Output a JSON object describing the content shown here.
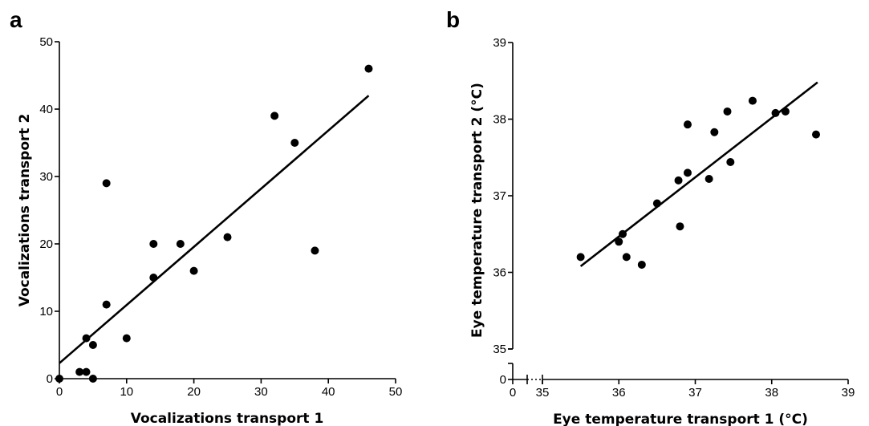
{
  "chart_data": [
    {
      "type": "scatter",
      "panel_label": "a",
      "xlabel": "Vocalizations transport 1",
      "ylabel": "Vocalizations transport 2",
      "xlim": [
        0,
        50
      ],
      "ylim": [
        0,
        50
      ],
      "x_ticks": [
        0,
        10,
        20,
        30,
        40,
        50
      ],
      "y_ticks": [
        0,
        10,
        20,
        30,
        40,
        50
      ],
      "grid": false,
      "points": [
        {
          "x": 0,
          "y": 0
        },
        {
          "x": 3,
          "y": 1
        },
        {
          "x": 4,
          "y": 1
        },
        {
          "x": 5,
          "y": 0
        },
        {
          "x": 4,
          "y": 6
        },
        {
          "x": 5,
          "y": 5
        },
        {
          "x": 7,
          "y": 11
        },
        {
          "x": 7,
          "y": 29
        },
        {
          "x": 10,
          "y": 6
        },
        {
          "x": 14,
          "y": 20
        },
        {
          "x": 14,
          "y": 15
        },
        {
          "x": 18,
          "y": 20
        },
        {
          "x": 20,
          "y": 16
        },
        {
          "x": 25,
          "y": 21
        },
        {
          "x": 32,
          "y": 39
        },
        {
          "x": 35,
          "y": 35
        },
        {
          "x": 38,
          "y": 19
        },
        {
          "x": 46,
          "y": 46
        }
      ],
      "fit_line": {
        "x": [
          0,
          46
        ],
        "y": [
          2.3,
          42
        ]
      }
    },
    {
      "type": "scatter",
      "panel_label": "b",
      "xlabel": "Eye temperature transport 1 (°C)",
      "ylabel": "Eye temperature transport 2 (°C)",
      "xlim": [
        35,
        39
      ],
      "ylim": [
        35,
        39
      ],
      "x_ticks": [
        35,
        36,
        37,
        38,
        39
      ],
      "y_ticks": [
        35,
        36,
        37,
        38,
        39
      ],
      "axis_break_ticks": {
        "x": "0",
        "y": "0"
      },
      "grid": false,
      "points": [
        {
          "x": 35.5,
          "y": 36.2
        },
        {
          "x": 36.0,
          "y": 36.4
        },
        {
          "x": 36.05,
          "y": 36.5
        },
        {
          "x": 36.1,
          "y": 36.2
        },
        {
          "x": 36.3,
          "y": 36.1
        },
        {
          "x": 36.5,
          "y": 36.9
        },
        {
          "x": 36.78,
          "y": 37.2
        },
        {
          "x": 36.8,
          "y": 36.6
        },
        {
          "x": 36.9,
          "y": 37.3
        },
        {
          "x": 36.9,
          "y": 37.93
        },
        {
          "x": 37.18,
          "y": 37.22
        },
        {
          "x": 37.25,
          "y": 37.83
        },
        {
          "x": 37.42,
          "y": 38.1
        },
        {
          "x": 37.46,
          "y": 37.44
        },
        {
          "x": 37.75,
          "y": 38.24
        },
        {
          "x": 38.05,
          "y": 38.08
        },
        {
          "x": 38.18,
          "y": 38.1
        },
        {
          "x": 38.58,
          "y": 37.8
        }
      ],
      "fit_line": {
        "x": [
          35.5,
          38.6
        ],
        "y": [
          36.08,
          38.48
        ]
      }
    }
  ]
}
